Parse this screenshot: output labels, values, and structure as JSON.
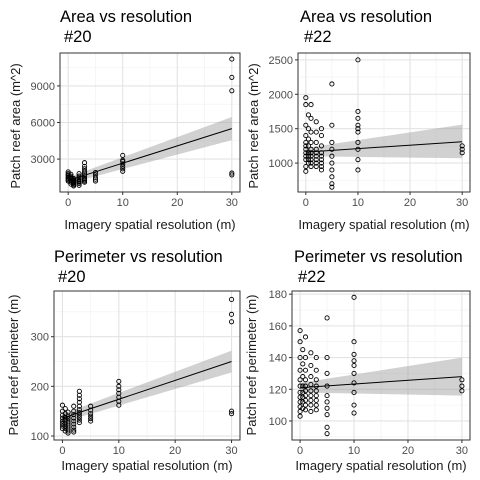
{
  "chart_data": [
    {
      "type": "scatter",
      "title": [
        "Area vs resolution",
        "#20"
      ],
      "xlabel": "Imagery spatial resolution (m)",
      "ylabel": "Patch reef area (m^2)",
      "xlim": [
        -1.5,
        31.5
      ],
      "ylim": [
        300,
        11700
      ],
      "xticks": [
        "0",
        "10",
        "20",
        "30"
      ],
      "yticks": [
        "3000",
        "6000",
        "9000"
      ],
      "x": [
        0,
        0,
        0,
        0,
        0,
        0,
        0,
        0,
        0.5,
        0.5,
        0.5,
        0.5,
        0.5,
        0.5,
        0.5,
        0.5,
        1,
        1,
        1,
        1,
        1,
        1,
        1,
        1,
        1,
        1,
        2,
        2,
        2,
        2,
        2,
        2,
        2,
        2,
        2,
        3,
        3,
        3,
        3,
        3,
        3,
        3,
        3,
        3,
        3,
        3,
        5,
        5,
        5,
        5,
        5,
        10,
        10,
        10,
        10,
        10,
        10,
        10,
        30,
        30,
        30,
        30,
        30
      ],
      "y": [
        1950,
        1800,
        1700,
        1600,
        1500,
        1400,
        1300,
        1200,
        1750,
        1600,
        1500,
        1400,
        1300,
        1200,
        1100,
        950,
        1400,
        1300,
        1200,
        1100,
        1000,
        900,
        800,
        1250,
        1150,
        1050,
        1800,
        1600,
        1450,
        1300,
        1150,
        1000,
        850,
        1200,
        1100,
        2700,
        2400,
        2200,
        2000,
        1850,
        1700,
        1550,
        1400,
        1300,
        1200,
        1100,
        1900,
        1700,
        1500,
        1350,
        1200,
        3300,
        2900,
        2600,
        2400,
        2200,
        2000,
        2800,
        11200,
        9700,
        8600,
        1850,
        1700
      ],
      "fit": {
        "x": [
          0,
          30
        ],
        "y": [
          1250,
          5500
        ],
        "ci_lower": [
          1000,
          4550
        ],
        "ci_upper": [
          1500,
          6450
        ]
      }
    },
    {
      "type": "scatter",
      "title": [
        "Area vs resolution",
        "#22"
      ],
      "xlabel": "Imagery spatial resolution (m)",
      "ylabel": "Patch reef area (m^2)",
      "xlim": [
        -1.5,
        31.5
      ],
      "ylim": [
        580,
        2600
      ],
      "xticks": [
        "0",
        "10",
        "20",
        "30"
      ],
      "yticks": [
        "1000",
        "1500",
        "2000",
        "2500"
      ],
      "x": [
        0,
        0,
        0,
        0,
        0,
        0,
        0,
        0,
        0,
        0,
        0,
        0,
        0.5,
        0.5,
        0.5,
        0.5,
        0.5,
        0.5,
        0.5,
        0.5,
        1,
        1,
        1,
        1,
        1,
        1,
        1,
        1,
        1,
        1,
        2,
        2,
        2,
        2,
        2,
        2,
        2,
        2,
        2,
        3,
        3,
        3,
        3,
        3,
        3,
        3,
        3,
        3,
        5,
        5,
        5,
        5,
        5,
        5,
        5,
        5,
        5,
        5,
        10,
        10,
        10,
        10,
        10,
        10,
        10,
        10,
        10,
        10,
        30,
        30,
        30
      ],
      "y": [
        1950,
        1850,
        1550,
        1400,
        1300,
        1250,
        1200,
        1150,
        1100,
        1050,
        950,
        880,
        1700,
        1500,
        1350,
        1250,
        1150,
        1100,
        1050,
        1000,
        1850,
        1650,
        1450,
        1300,
        1200,
        1150,
        1100,
        1050,
        1000,
        950,
        1600,
        1450,
        1300,
        1200,
        1150,
        1100,
        1050,
        1000,
        950,
        1500,
        1400,
        1250,
        1150,
        1100,
        1050,
        1000,
        950,
        900,
        2150,
        1550,
        1300,
        1200,
        1100,
        1000,
        900,
        800,
        700,
        650,
        2500,
        1750,
        1650,
        1550,
        1500,
        1450,
        1300,
        1200,
        1050,
        900,
        1250,
        1200,
        1150
      ],
      "fit": {
        "x": [
          0,
          30
        ],
        "y": [
          1160,
          1310
        ],
        "ci_lower": [
          1100,
          1070
        ],
        "ci_upper": [
          1220,
          1560
        ]
      }
    },
    {
      "type": "scatter",
      "title": [
        "Perimeter vs resolution",
        "#20"
      ],
      "xlabel": "Imagery spatial resolution (m)",
      "ylabel": "Patch reef perimeter (m)",
      "xlim": [
        -1.5,
        31.5
      ],
      "ylim": [
        92,
        392
      ],
      "xticks": [
        "0",
        "10",
        "20",
        "30"
      ],
      "yticks": [
        "100",
        "200",
        "300"
      ],
      "x": [
        0,
        0,
        0,
        0,
        0,
        0,
        0,
        0,
        0.5,
        0.5,
        0.5,
        0.5,
        0.5,
        0.5,
        0.5,
        0.5,
        1,
        1,
        1,
        1,
        1,
        1,
        1,
        1,
        1,
        1,
        2,
        2,
        2,
        2,
        2,
        2,
        2,
        2,
        2,
        3,
        3,
        3,
        3,
        3,
        3,
        3,
        3,
        3,
        3,
        3,
        5,
        5,
        5,
        5,
        5,
        5,
        10,
        10,
        10,
        10,
        10,
        10,
        10,
        30,
        30,
        30,
        30,
        30
      ],
      "y": [
        162,
        150,
        142,
        136,
        130,
        125,
        120,
        115,
        155,
        145,
        138,
        132,
        126,
        120,
        115,
        110,
        148,
        140,
        135,
        130,
        126,
        122,
        118,
        114,
        110,
        106,
        160,
        150,
        143,
        136,
        130,
        124,
        118,
        112,
        108,
        190,
        182,
        175,
        168,
        160,
        153,
        147,
        142,
        137,
        132,
        127,
        160,
        152,
        145,
        140,
        135,
        130,
        210,
        200,
        193,
        186,
        178,
        170,
        162,
        375,
        345,
        330,
        150,
        145
      ],
      "fit": {
        "x": [
          0,
          30
        ],
        "y": [
          136,
          250
        ],
        "ci_lower": [
          128,
          228
        ],
        "ci_upper": [
          144,
          272
        ]
      }
    },
    {
      "type": "scatter",
      "title": [
        "Perimeter vs resolution",
        "#22"
      ],
      "xlabel": "Imagery spatial resolution (m)",
      "ylabel": "Patch reef perimeter (m)",
      "xlim": [
        -1.5,
        31.5
      ],
      "ylim": [
        88,
        182
      ],
      "xticks": [
        "0",
        "10",
        "20",
        "30"
      ],
      "yticks": [
        "100",
        "120",
        "140",
        "160",
        "180"
      ],
      "x": [
        0,
        0,
        0,
        0,
        0,
        0,
        0,
        0,
        0,
        0,
        0,
        0,
        0.5,
        0.5,
        0.5,
        0.5,
        0.5,
        0.5,
        0.5,
        0.5,
        1,
        1,
        1,
        1,
        1,
        1,
        1,
        1,
        1,
        1,
        2,
        2,
        2,
        2,
        2,
        2,
        2,
        2,
        2,
        3,
        3,
        3,
        3,
        3,
        3,
        3,
        3,
        3,
        5,
        5,
        5,
        5,
        5,
        5,
        5,
        5,
        5,
        5,
        10,
        10,
        10,
        10,
        10,
        10,
        10,
        10,
        10,
        10,
        30,
        30,
        30
      ],
      "y": [
        157,
        150,
        140,
        132,
        126,
        122,
        118,
        115,
        112,
        109,
        106,
        103,
        145,
        136,
        128,
        122,
        118,
        115,
        112,
        108,
        153,
        140,
        132,
        126,
        122,
        119,
        116,
        113,
        110,
        107,
        143,
        135,
        128,
        123,
        119,
        116,
        113,
        110,
        106,
        140,
        132,
        126,
        122,
        119,
        116,
        113,
        110,
        107,
        165,
        140,
        130,
        122,
        116,
        112,
        108,
        104,
        96,
        92,
        178,
        150,
        142,
        138,
        135,
        130,
        124,
        118,
        110,
        105,
        126,
        122,
        119
      ],
      "fit": {
        "x": [
          0,
          30
        ],
        "y": [
          121,
          128
        ],
        "ci_lower": [
          118,
          116
        ],
        "ci_upper": [
          124,
          140
        ]
      }
    }
  ]
}
